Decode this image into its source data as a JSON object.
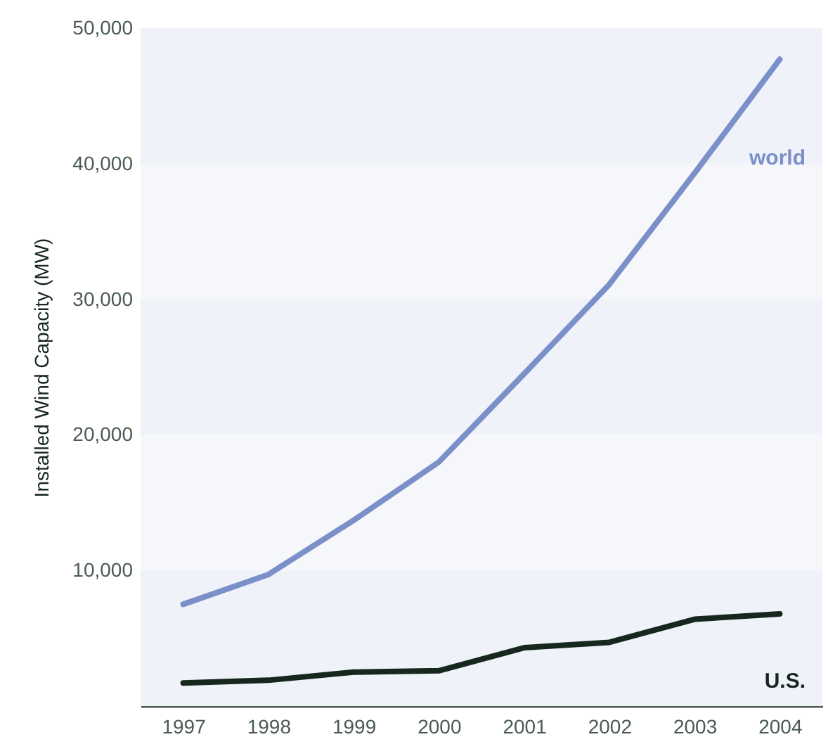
{
  "chart_data": {
    "type": "line",
    "ylabel": "Installed Wind Capacity (MW)",
    "categories": [
      "1997",
      "1998",
      "1999",
      "2000",
      "2001",
      "2002",
      "2003",
      "2004"
    ],
    "series": [
      {
        "name": "world",
        "color": "#7b8fc9",
        "values": [
          7500,
          9700,
          13700,
          18000,
          24500,
          31100,
          39300,
          47700
        ]
      },
      {
        "name": "U.S.",
        "color": "#16281d",
        "values": [
          1700,
          1900,
          2500,
          2600,
          4300,
          4700,
          6400,
          6800
        ]
      }
    ],
    "ylim": [
      0,
      50000
    ],
    "yticks": [
      {
        "value": 10000,
        "label": "10,000"
      },
      {
        "value": 20000,
        "label": "20,000"
      },
      {
        "value": 30000,
        "label": "30,000"
      },
      {
        "value": 40000,
        "label": "40,000"
      },
      {
        "value": 50000,
        "label": "50,000"
      }
    ],
    "bands": [
      {
        "axis": "y",
        "from": 0,
        "to": 10000,
        "color": "#eff2f8"
      },
      {
        "axis": "y",
        "from": 10000,
        "to": 20000,
        "color": "#f6f7fb"
      },
      {
        "axis": "y",
        "from": 20000,
        "to": 30000,
        "color": "#eff2f8"
      },
      {
        "axis": "y",
        "from": 30000,
        "to": 40000,
        "color": "#f6f7fb"
      },
      {
        "axis": "y",
        "from": 40000,
        "to": 50000,
        "color": "#eff2f8"
      }
    ],
    "grid": false,
    "legend": false,
    "marker": "none",
    "line_style": "solid"
  }
}
